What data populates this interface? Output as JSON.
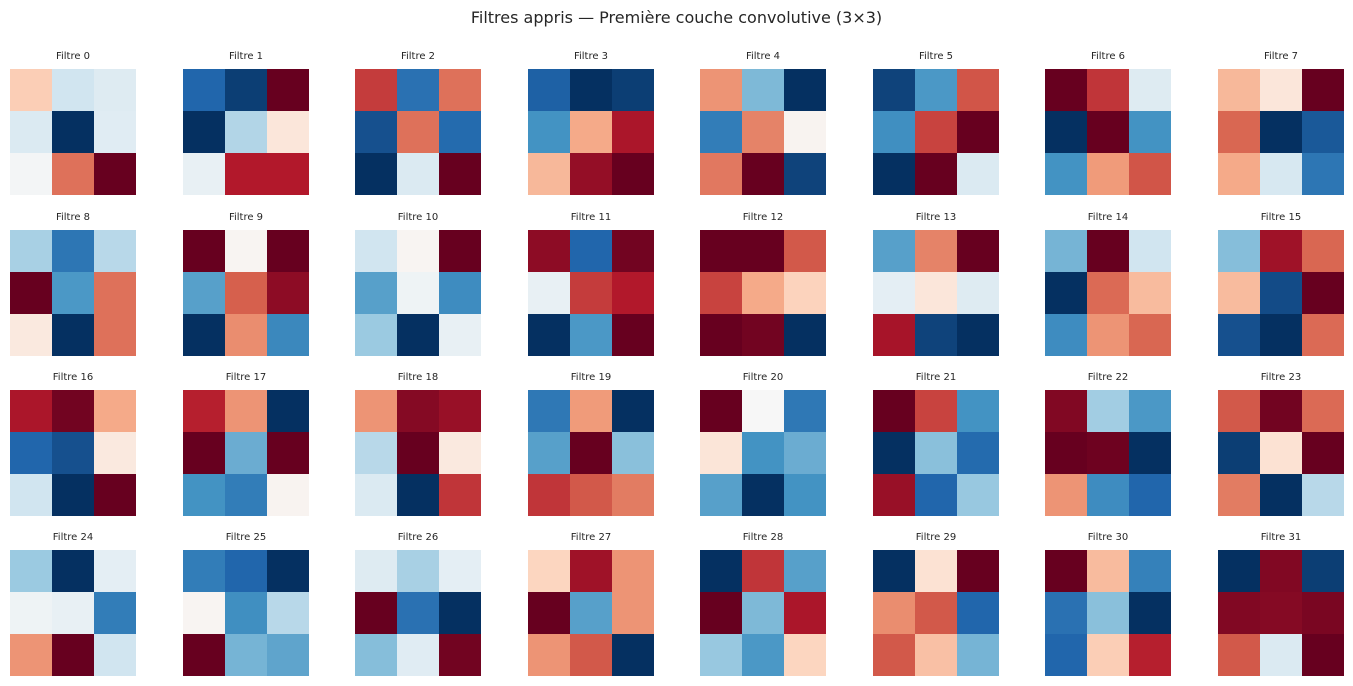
{
  "chart_data": {
    "type": "heatmap",
    "title": "Filtres appris — Première couche convolutive (3×3)",
    "colormap": "RdBu_r",
    "value_range": [
      -1,
      1
    ],
    "colormap_stops": [
      "#053061",
      "#2166ac",
      "#4393c3",
      "#92c5de",
      "#d1e5f0",
      "#f7f7f7",
      "#fddbc7",
      "#f4a582",
      "#d6604d",
      "#b2182b",
      "#67001f"
    ],
    "layout": "4 rows x 8 columns",
    "filters": [
      {
        "label": "Filtre 0",
        "values": [
          [
            0.25,
            -0.2,
            -0.13
          ],
          [
            -0.15,
            -1,
            -0.12
          ],
          [
            -0.02,
            0.55,
            1
          ]
        ]
      },
      {
        "label": "Filtre 1",
        "values": [
          [
            -0.8,
            -0.95,
            1
          ],
          [
            -1,
            -0.3,
            0.12
          ],
          [
            -0.08,
            0.8,
            0.8
          ]
        ]
      },
      {
        "label": "Filtre 2",
        "values": [
          [
            0.7,
            -0.75,
            0.55
          ],
          [
            -0.88,
            0.55,
            -0.78
          ],
          [
            -1,
            -0.15,
            1
          ]
        ]
      },
      {
        "label": "Filtre 3",
        "values": [
          [
            -0.82,
            -1,
            -0.95
          ],
          [
            -0.6,
            0.38,
            0.82
          ],
          [
            0.33,
            0.88,
            1
          ]
        ]
      },
      {
        "label": "Filtre 4",
        "values": [
          [
            0.45,
            -0.45,
            -1
          ],
          [
            -0.7,
            0.5,
            0.03
          ],
          [
            0.53,
            1,
            -0.93
          ]
        ]
      },
      {
        "label": "Filtre 5",
        "values": [
          [
            -0.93,
            -0.58,
            0.63
          ],
          [
            -0.62,
            0.68,
            1
          ],
          [
            -1,
            1,
            -0.15
          ]
        ]
      },
      {
        "label": "Filtre 6",
        "values": [
          [
            1,
            0.72,
            -0.13
          ],
          [
            -1,
            1,
            -0.6
          ],
          [
            -0.6,
            0.43,
            0.63
          ]
        ]
      },
      {
        "label": "Filtre 7",
        "values": [
          [
            0.33,
            0.12,
            1
          ],
          [
            0.58,
            -1,
            -0.85
          ],
          [
            0.38,
            -0.17,
            -0.73
          ]
        ]
      },
      {
        "label": "Filtre 8",
        "values": [
          [
            -0.33,
            -0.73,
            -0.28
          ],
          [
            1,
            -0.58,
            0.55
          ],
          [
            0.1,
            -1,
            0.55
          ]
        ]
      },
      {
        "label": "Filtre 9",
        "values": [
          [
            1,
            0.02,
            1
          ],
          [
            -0.55,
            0.6,
            0.9
          ],
          [
            -1,
            0.47,
            -0.65
          ]
        ]
      },
      {
        "label": "Filtre 10",
        "values": [
          [
            -0.2,
            0.02,
            1
          ],
          [
            -0.55,
            -0.05,
            -0.63
          ],
          [
            -0.37,
            -1,
            -0.08
          ]
        ]
      },
      {
        "label": "Filtre 11",
        "values": [
          [
            0.9,
            -0.8,
            0.97
          ],
          [
            -0.08,
            0.7,
            0.8
          ],
          [
            -1,
            -0.58,
            1
          ]
        ]
      },
      {
        "label": "Filtre 12",
        "values": [
          [
            1,
            1,
            0.62
          ],
          [
            0.68,
            0.38,
            0.23
          ],
          [
            1,
            0.97,
            -1
          ]
        ]
      },
      {
        "label": "Filtre 13",
        "values": [
          [
            -0.55,
            0.5,
            1
          ],
          [
            -0.1,
            0.12,
            -0.13
          ],
          [
            0.83,
            -0.93,
            -1
          ]
        ]
      },
      {
        "label": "Filtre 14",
        "values": [
          [
            -0.47,
            1,
            -0.2
          ],
          [
            -1,
            0.57,
            0.32
          ],
          [
            -0.63,
            0.45,
            0.58
          ]
        ]
      },
      {
        "label": "Filtre 15",
        "values": [
          [
            -0.43,
            0.85,
            0.58
          ],
          [
            0.32,
            -0.9,
            1
          ],
          [
            -0.88,
            -1,
            0.57
          ]
        ]
      },
      {
        "label": "Filtre 16",
        "values": [
          [
            0.82,
            0.97,
            0.38
          ],
          [
            -0.8,
            -0.88,
            0.1
          ],
          [
            -0.2,
            -1,
            1
          ]
        ]
      },
      {
        "label": "Filtre 17",
        "values": [
          [
            0.78,
            0.45,
            -1
          ],
          [
            1,
            -0.5,
            1
          ],
          [
            -0.6,
            -0.7,
            0.03
          ]
        ]
      },
      {
        "label": "Filtre 18",
        "values": [
          [
            0.45,
            0.92,
            0.87
          ],
          [
            -0.28,
            1,
            0.1
          ],
          [
            -0.15,
            -1,
            0.72
          ]
        ]
      },
      {
        "label": "Filtre 19",
        "values": [
          [
            -0.72,
            0.43,
            -1
          ],
          [
            -0.55,
            1,
            -0.42
          ],
          [
            0.72,
            0.62,
            0.52
          ]
        ]
      },
      {
        "label": "Filtre 20",
        "values": [
          [
            1,
            0.0,
            -0.72
          ],
          [
            0.13,
            -0.6,
            -0.5
          ],
          [
            -0.55,
            -1,
            -0.6
          ]
        ]
      },
      {
        "label": "Filtre 21",
        "values": [
          [
            1,
            0.68,
            -0.6
          ],
          [
            -1,
            -0.42,
            -0.78
          ],
          [
            0.87,
            -0.8,
            -0.38
          ]
        ]
      },
      {
        "label": "Filtre 22",
        "values": [
          [
            0.93,
            -0.35,
            -0.58
          ],
          [
            1,
            0.98,
            -1
          ],
          [
            0.45,
            -0.63,
            -0.8
          ]
        ]
      },
      {
        "label": "Filtre 23",
        "values": [
          [
            0.62,
            0.97,
            0.57
          ],
          [
            -0.95,
            0.15,
            1
          ],
          [
            0.52,
            -1,
            -0.28
          ]
        ]
      },
      {
        "label": "Filtre 24",
        "values": [
          [
            -0.37,
            -1,
            -0.1
          ],
          [
            -0.05,
            -0.08,
            -0.7
          ],
          [
            0.45,
            1,
            -0.2
          ]
        ]
      },
      {
        "label": "Filtre 25",
        "values": [
          [
            -0.7,
            -0.8,
            -1
          ],
          [
            0.02,
            -0.62,
            -0.28
          ],
          [
            1,
            -0.47,
            -0.53
          ]
        ]
      },
      {
        "label": "Filtre 26",
        "values": [
          [
            -0.13,
            -0.33,
            -0.1
          ],
          [
            1,
            -0.75,
            -1
          ],
          [
            -0.43,
            -0.12,
            0.97
          ]
        ]
      },
      {
        "label": "Filtre 27",
        "values": [
          [
            0.22,
            0.85,
            0.45
          ],
          [
            1,
            -0.55,
            0.45
          ],
          [
            0.45,
            0.62,
            -1
          ]
        ]
      },
      {
        "label": "Filtre 28",
        "values": [
          [
            -1,
            0.72,
            -0.55
          ],
          [
            1,
            -0.45,
            0.82
          ],
          [
            -0.38,
            -0.58,
            0.22
          ]
        ]
      },
      {
        "label": "Filtre 29",
        "values": [
          [
            -1,
            0.15,
            1
          ],
          [
            0.47,
            0.62,
            -0.8
          ],
          [
            0.62,
            0.3,
            -0.47
          ]
        ]
      },
      {
        "label": "Filtre 30",
        "values": [
          [
            1,
            0.32,
            -0.68
          ],
          [
            -0.75,
            -0.42,
            -1
          ],
          [
            -0.8,
            0.25,
            0.78
          ]
        ]
      },
      {
        "label": "Filtre 31",
        "values": [
          [
            -1,
            0.93,
            -0.95
          ],
          [
            0.93,
            0.92,
            0.95
          ],
          [
            0.62,
            -0.15,
            1
          ]
        ]
      }
    ]
  }
}
